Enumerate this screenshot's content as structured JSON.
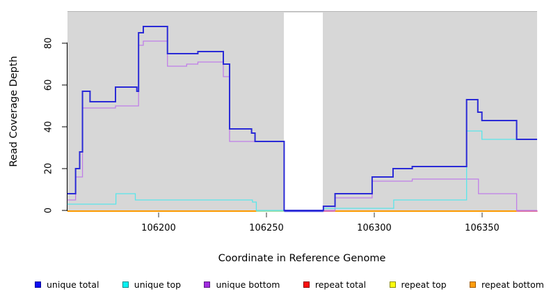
{
  "axes": {
    "x_label": "Coordinate in Reference Genome",
    "y_label": "Read Coverage Depth",
    "x_ticks": [
      106200,
      106250,
      106300,
      106350
    ],
    "y_ticks": [
      0,
      20,
      40,
      60,
      80
    ]
  },
  "legend": {
    "items": [
      {
        "label": "unique total",
        "fill": "#0d0df2",
        "border": "#000099"
      },
      {
        "label": "unique top",
        "fill": "#00f2f2",
        "border": "#008b8b"
      },
      {
        "label": "unique bottom",
        "fill": "#a22ce0",
        "border": "#5a1a80"
      },
      {
        "label": "repeat total",
        "fill": "#fb0e0e",
        "border": "#8b0000"
      },
      {
        "label": "repeat top",
        "fill": "#fdfd0a",
        "border": "#8b8b00"
      },
      {
        "label": "repeat bottom",
        "fill": "#ff9d0a",
        "border": "#a05a00"
      }
    ]
  },
  "chart_data": {
    "type": "line",
    "subtype": "step-coverage",
    "title": "",
    "xlabel": "Coordinate in Reference Genome",
    "ylabel": "Read Coverage Depth",
    "x_range": [
      106157.7,
      106375.5
    ],
    "y_range": [
      0,
      90
    ],
    "grid": false,
    "panel_background": "#d7d7d7",
    "gap_region": {
      "x1": 106258.1,
      "x2": 106276.2,
      "color": "#ffffff"
    },
    "series": [
      {
        "name": "unique bottom",
        "color": "#c07ee8",
        "width": 1.3,
        "points": [
          [
            106157.7,
            5
          ],
          [
            106161.5,
            16
          ],
          [
            106164.7,
            49
          ],
          [
            106180,
            50
          ],
          [
            106190.7,
            79
          ],
          [
            106192.9,
            81
          ],
          [
            106204.1,
            69
          ],
          [
            106213,
            70
          ],
          [
            106218.2,
            71
          ],
          [
            106230,
            64
          ],
          [
            106232.9,
            33
          ],
          [
            106258.2,
            0
          ],
          [
            106281.8,
            6
          ],
          [
            106299,
            14
          ],
          [
            106317.6,
            15
          ],
          [
            106348.3,
            8
          ],
          [
            106366,
            0
          ],
          [
            106375.5,
            0
          ]
        ]
      },
      {
        "name": "unique top",
        "color": "#58e6ea",
        "width": 1.3,
        "points": [
          [
            106157.7,
            3
          ],
          [
            106180.2,
            8
          ],
          [
            106189.2,
            5
          ],
          [
            106243.5,
            4
          ],
          [
            106245.3,
            0
          ],
          [
            106276.4,
            1
          ],
          [
            106309,
            5
          ],
          [
            106342.8,
            38
          ],
          [
            106349.9,
            34
          ],
          [
            106375.5,
            34
          ]
        ]
      },
      {
        "name": "unique total",
        "color": "#2a2ad6",
        "width": 2,
        "points": [
          [
            106157.7,
            8
          ],
          [
            106161.5,
            20
          ],
          [
            106163.4,
            28
          ],
          [
            106164.7,
            57
          ],
          [
            106168.2,
            52
          ],
          [
            106180,
            59
          ],
          [
            106189.9,
            57
          ],
          [
            106190.7,
            85
          ],
          [
            106192.9,
            88
          ],
          [
            106204.1,
            75
          ],
          [
            106218.2,
            76
          ],
          [
            106230,
            70
          ],
          [
            106232.9,
            39
          ],
          [
            106243.1,
            37
          ],
          [
            106244.7,
            33
          ],
          [
            106258.2,
            0
          ],
          [
            106276.4,
            2
          ],
          [
            106281.8,
            8
          ],
          [
            106299,
            16
          ],
          [
            106308.7,
            20
          ],
          [
            106317.6,
            21
          ],
          [
            106342.8,
            53
          ],
          [
            106348,
            47
          ],
          [
            106349.9,
            43
          ],
          [
            106366,
            34
          ],
          [
            106375.5,
            34
          ]
        ]
      }
    ],
    "baseline_segments": [
      {
        "name": "repeat bottom",
        "color": "#ff9a00",
        "width": 2,
        "x1": 106157.7,
        "x2": 106245.3
      },
      {
        "name": "baseline green",
        "color": "#98dd94",
        "width": 1.5,
        "x1": 106245.3,
        "x2": 106258.2
      },
      {
        "name": "unique total zero",
        "color": "#4a4ae0",
        "width": 2.5,
        "x1": 106258.2,
        "x2": 106276.4
      },
      {
        "name": "repeat total",
        "color": "#e0558a",
        "width": 1.5,
        "x1": 106276.4,
        "x2": 106281.8
      },
      {
        "name": "repeat bottom",
        "color": "#ff9a00",
        "width": 2,
        "x1": 106281.8,
        "x2": 106366
      },
      {
        "name": "repeat total",
        "color": "#e0558a",
        "width": 1.5,
        "x1": 106366,
        "x2": 106375.7
      }
    ]
  }
}
